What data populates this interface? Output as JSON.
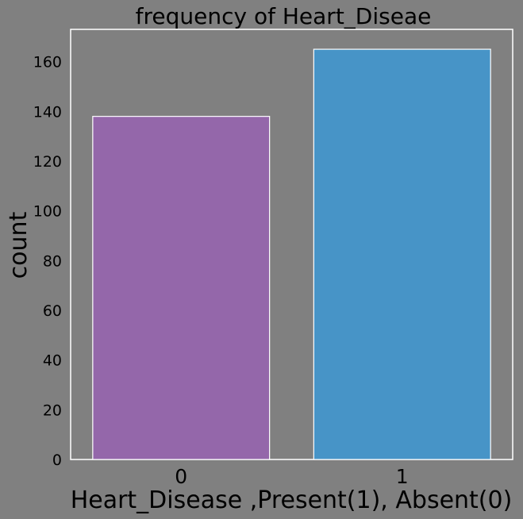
{
  "chart_data": {
    "type": "bar",
    "title": "frequency of Heart_Diseae",
    "xlabel": "Heart_Disease ,Present(1), Absent(0)",
    "ylabel": "count",
    "categories": [
      "0",
      "1"
    ],
    "values": [
      138,
      165
    ],
    "ylim": [
      0,
      173
    ],
    "yticks": [
      0,
      20,
      40,
      60,
      80,
      100,
      120,
      140,
      160
    ],
    "ytick_labels": [
      "0",
      "20",
      "40",
      "60",
      "80",
      "100",
      "120",
      "140",
      "160"
    ],
    "grid": false,
    "colors": {
      "background": "#808080",
      "axes_edge": "#ffffff",
      "bar_edge": "#ffffff",
      "bars": [
        "#9467aa",
        "#4794c7"
      ],
      "text": "#000000"
    }
  }
}
